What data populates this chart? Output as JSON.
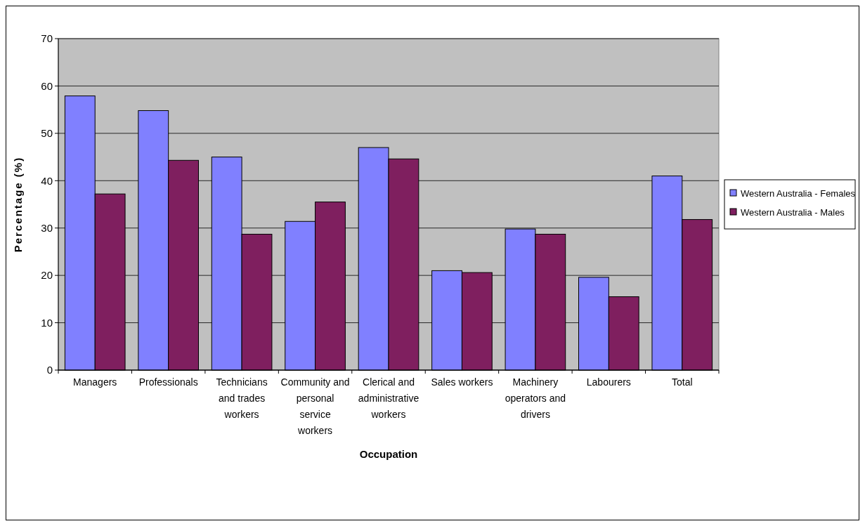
{
  "chart_data": {
    "type": "bar",
    "xlabel": "Occupation",
    "ylabel": "Percentage (%)",
    "categories": [
      "Managers",
      "Professionals",
      "Technicians and trades workers",
      "Community and personal service workers",
      "Clerical and administrative workers",
      "Sales workers",
      "Machinery operators and drivers",
      "Labourers",
      "Total"
    ],
    "series": [
      {
        "name": "Western Australia - Females",
        "color": "#8080ff",
        "values": [
          57.9,
          54.8,
          45.0,
          31.4,
          47.0,
          21.0,
          29.8,
          19.6,
          41.0
        ]
      },
      {
        "name": "Western Australia - Males",
        "color": "#7f1f5f",
        "values": [
          37.2,
          44.3,
          28.7,
          35.5,
          44.6,
          20.6,
          28.7,
          15.5,
          31.8
        ]
      }
    ],
    "ylim": [
      0,
      70
    ],
    "yticks": [
      0,
      10,
      20,
      30,
      40,
      50,
      60,
      70
    ],
    "grid": "y",
    "legend": "right"
  }
}
